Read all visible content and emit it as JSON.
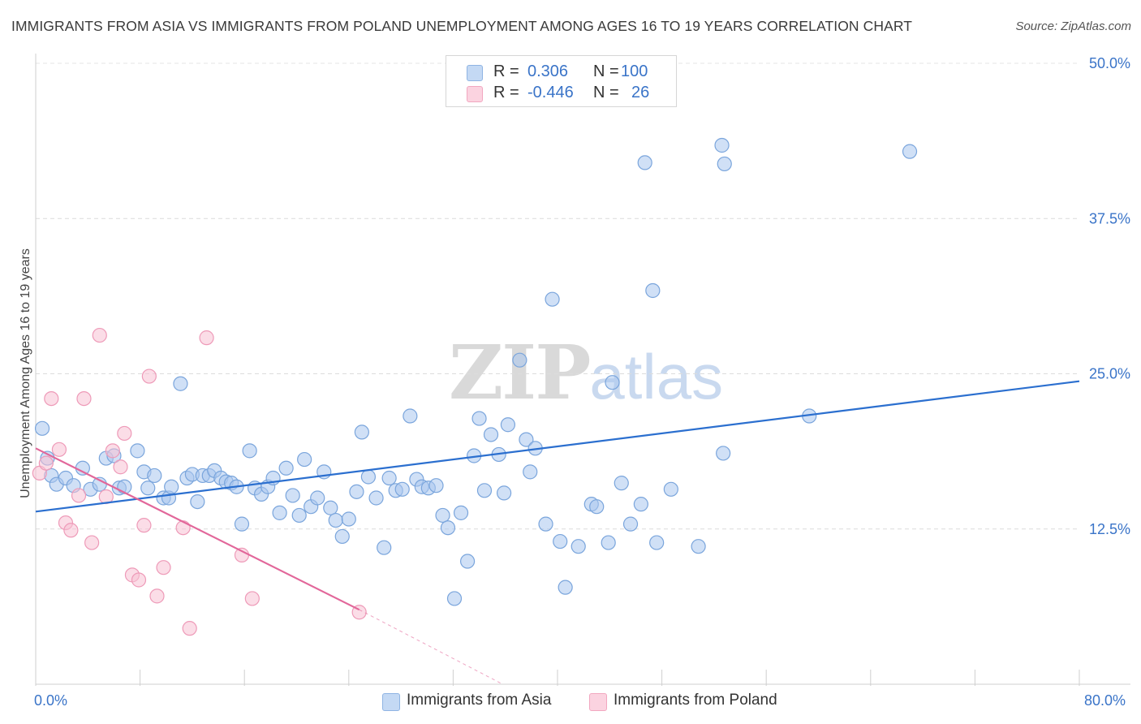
{
  "title": "IMMIGRANTS FROM ASIA VS IMMIGRANTS FROM POLAND UNEMPLOYMENT AMONG AGES 16 TO 19 YEARS CORRELATION CHART",
  "source": "Source: ZipAtlas.com",
  "watermark": {
    "zip": "ZIP",
    "atlas": "atlas"
  },
  "legend": {
    "rows": [
      {
        "r_label": "R =",
        "r_value": "0.306",
        "n_label": "N =",
        "n_value": "100",
        "color": "#8fb4e3"
      },
      {
        "r_label": "R =",
        "r_value": "-0.446",
        "n_label": "N =",
        "n_value": "26",
        "color": "#f2a7c0"
      }
    ],
    "bottom": [
      {
        "label": "Immigrants from Asia",
        "color": "#8fb4e3"
      },
      {
        "label": "Immigrants from Poland",
        "color": "#f2a7c0"
      }
    ]
  },
  "colors": {
    "asia_fill": "#a9c6ee",
    "asia_stroke": "#7aa5dc",
    "asia_line": "#2b6fcf",
    "poland_fill": "#f7c1d3",
    "poland_stroke": "#ee9ab8",
    "poland_line": "#e2679a",
    "axis_text": "#3a74c8"
  },
  "chart_data": {
    "type": "scatter",
    "title": "IMMIGRANTS FROM ASIA VS IMMIGRANTS FROM POLAND UNEMPLOYMENT AMONG AGES 16 TO 19 YEARS CORRELATION CHART",
    "xlabel": "",
    "ylabel": "Unemployment Among Ages 16 to 19 years",
    "xlim": [
      0,
      80
    ],
    "ylim": [
      0,
      50
    ],
    "x_tick_labels": [
      "0.0%",
      "80.0%"
    ],
    "y_ticks": [
      12.5,
      25.0,
      37.5,
      50.0
    ],
    "y_tick_labels": [
      "12.5%",
      "25.0%",
      "37.5%",
      "50.0%"
    ],
    "grid": true,
    "legend_position": "top-center",
    "series": [
      {
        "name": "Immigrants from Asia",
        "trend": {
          "x": [
            0,
            80
          ],
          "y": [
            13.9,
            24.4
          ]
        },
        "points": [
          [
            0.5,
            20.6
          ],
          [
            0.9,
            18.2
          ],
          [
            1.2,
            16.8
          ],
          [
            1.6,
            16.1
          ],
          [
            2.3,
            16.6
          ],
          [
            2.9,
            16.0
          ],
          [
            3.6,
            17.4
          ],
          [
            4.2,
            15.7
          ],
          [
            4.9,
            16.1
          ],
          [
            5.4,
            18.2
          ],
          [
            6.0,
            18.4
          ],
          [
            6.4,
            15.8
          ],
          [
            6.8,
            15.9
          ],
          [
            7.8,
            18.8
          ],
          [
            8.3,
            17.1
          ],
          [
            8.6,
            15.8
          ],
          [
            9.1,
            16.8
          ],
          [
            9.8,
            15.0
          ],
          [
            10.2,
            15.0
          ],
          [
            10.4,
            15.9
          ],
          [
            11.1,
            24.2
          ],
          [
            11.6,
            16.6
          ],
          [
            12.0,
            16.9
          ],
          [
            12.4,
            14.7
          ],
          [
            12.8,
            16.8
          ],
          [
            13.3,
            16.8
          ],
          [
            13.7,
            17.2
          ],
          [
            14.2,
            16.6
          ],
          [
            14.6,
            16.3
          ],
          [
            15.0,
            16.2
          ],
          [
            15.4,
            15.9
          ],
          [
            15.8,
            12.9
          ],
          [
            16.4,
            18.8
          ],
          [
            16.8,
            15.8
          ],
          [
            17.3,
            15.3
          ],
          [
            17.8,
            15.9
          ],
          [
            18.2,
            16.6
          ],
          [
            18.7,
            13.8
          ],
          [
            19.2,
            17.4
          ],
          [
            19.7,
            15.2
          ],
          [
            20.2,
            13.6
          ],
          [
            20.6,
            18.1
          ],
          [
            21.1,
            14.3
          ],
          [
            21.6,
            15.0
          ],
          [
            22.1,
            17.1
          ],
          [
            22.6,
            14.2
          ],
          [
            23.0,
            13.2
          ],
          [
            23.5,
            11.9
          ],
          [
            24.0,
            13.3
          ],
          [
            24.6,
            15.5
          ],
          [
            25.0,
            20.3
          ],
          [
            25.5,
            16.7
          ],
          [
            26.1,
            15.0
          ],
          [
            26.7,
            11.0
          ],
          [
            27.1,
            16.6
          ],
          [
            27.6,
            15.6
          ],
          [
            28.1,
            15.7
          ],
          [
            28.7,
            21.6
          ],
          [
            29.2,
            16.5
          ],
          [
            29.6,
            15.9
          ],
          [
            30.1,
            15.8
          ],
          [
            30.7,
            16.0
          ],
          [
            31.2,
            13.6
          ],
          [
            31.6,
            12.6
          ],
          [
            32.1,
            6.9
          ],
          [
            32.6,
            13.8
          ],
          [
            33.1,
            9.9
          ],
          [
            33.6,
            18.4
          ],
          [
            34.0,
            21.4
          ],
          [
            34.4,
            15.6
          ],
          [
            34.9,
            20.1
          ],
          [
            35.5,
            18.5
          ],
          [
            35.9,
            15.4
          ],
          [
            36.2,
            20.9
          ],
          [
            37.1,
            26.1
          ],
          [
            37.6,
            19.7
          ],
          [
            37.9,
            17.1
          ],
          [
            38.3,
            19.0
          ],
          [
            39.1,
            12.9
          ],
          [
            39.6,
            31.0
          ],
          [
            40.2,
            11.5
          ],
          [
            40.6,
            7.8
          ],
          [
            41.6,
            11.1
          ],
          [
            42.6,
            14.5
          ],
          [
            43.0,
            14.3
          ],
          [
            43.9,
            11.4
          ],
          [
            44.2,
            24.3
          ],
          [
            44.9,
            16.2
          ],
          [
            45.6,
            12.9
          ],
          [
            46.4,
            14.5
          ],
          [
            46.7,
            42.0
          ],
          [
            47.3,
            31.7
          ],
          [
            47.6,
            11.4
          ],
          [
            48.7,
            15.7
          ],
          [
            50.8,
            11.1
          ],
          [
            52.7,
            18.6
          ],
          [
            52.6,
            43.4
          ],
          [
            52.8,
            41.9
          ],
          [
            59.3,
            21.6
          ],
          [
            67.0,
            42.9
          ]
        ]
      },
      {
        "name": "Immigrants from Poland",
        "trend": {
          "x": [
            0,
            24.8
          ],
          "y": [
            19.0,
            6.0
          ]
        },
        "trend_dashed": {
          "x": [
            24.8,
            35.8
          ],
          "y": [
            6.0,
            0.0
          ]
        },
        "points": [
          [
            0.3,
            17.0
          ],
          [
            0.8,
            17.8
          ],
          [
            1.2,
            23.0
          ],
          [
            1.8,
            18.9
          ],
          [
            2.3,
            13.0
          ],
          [
            2.7,
            12.4
          ],
          [
            3.3,
            15.2
          ],
          [
            3.7,
            23.0
          ],
          [
            4.3,
            11.4
          ],
          [
            4.9,
            28.1
          ],
          [
            5.4,
            15.1
          ],
          [
            5.9,
            18.8
          ],
          [
            6.5,
            17.5
          ],
          [
            6.8,
            20.2
          ],
          [
            7.4,
            8.8
          ],
          [
            7.9,
            8.4
          ],
          [
            8.3,
            12.8
          ],
          [
            8.7,
            24.8
          ],
          [
            9.3,
            7.1
          ],
          [
            9.8,
            9.4
          ],
          [
            11.3,
            12.6
          ],
          [
            11.8,
            4.5
          ],
          [
            13.1,
            27.9
          ],
          [
            15.8,
            10.4
          ],
          [
            16.6,
            6.9
          ],
          [
            24.8,
            5.8
          ]
        ]
      }
    ]
  }
}
